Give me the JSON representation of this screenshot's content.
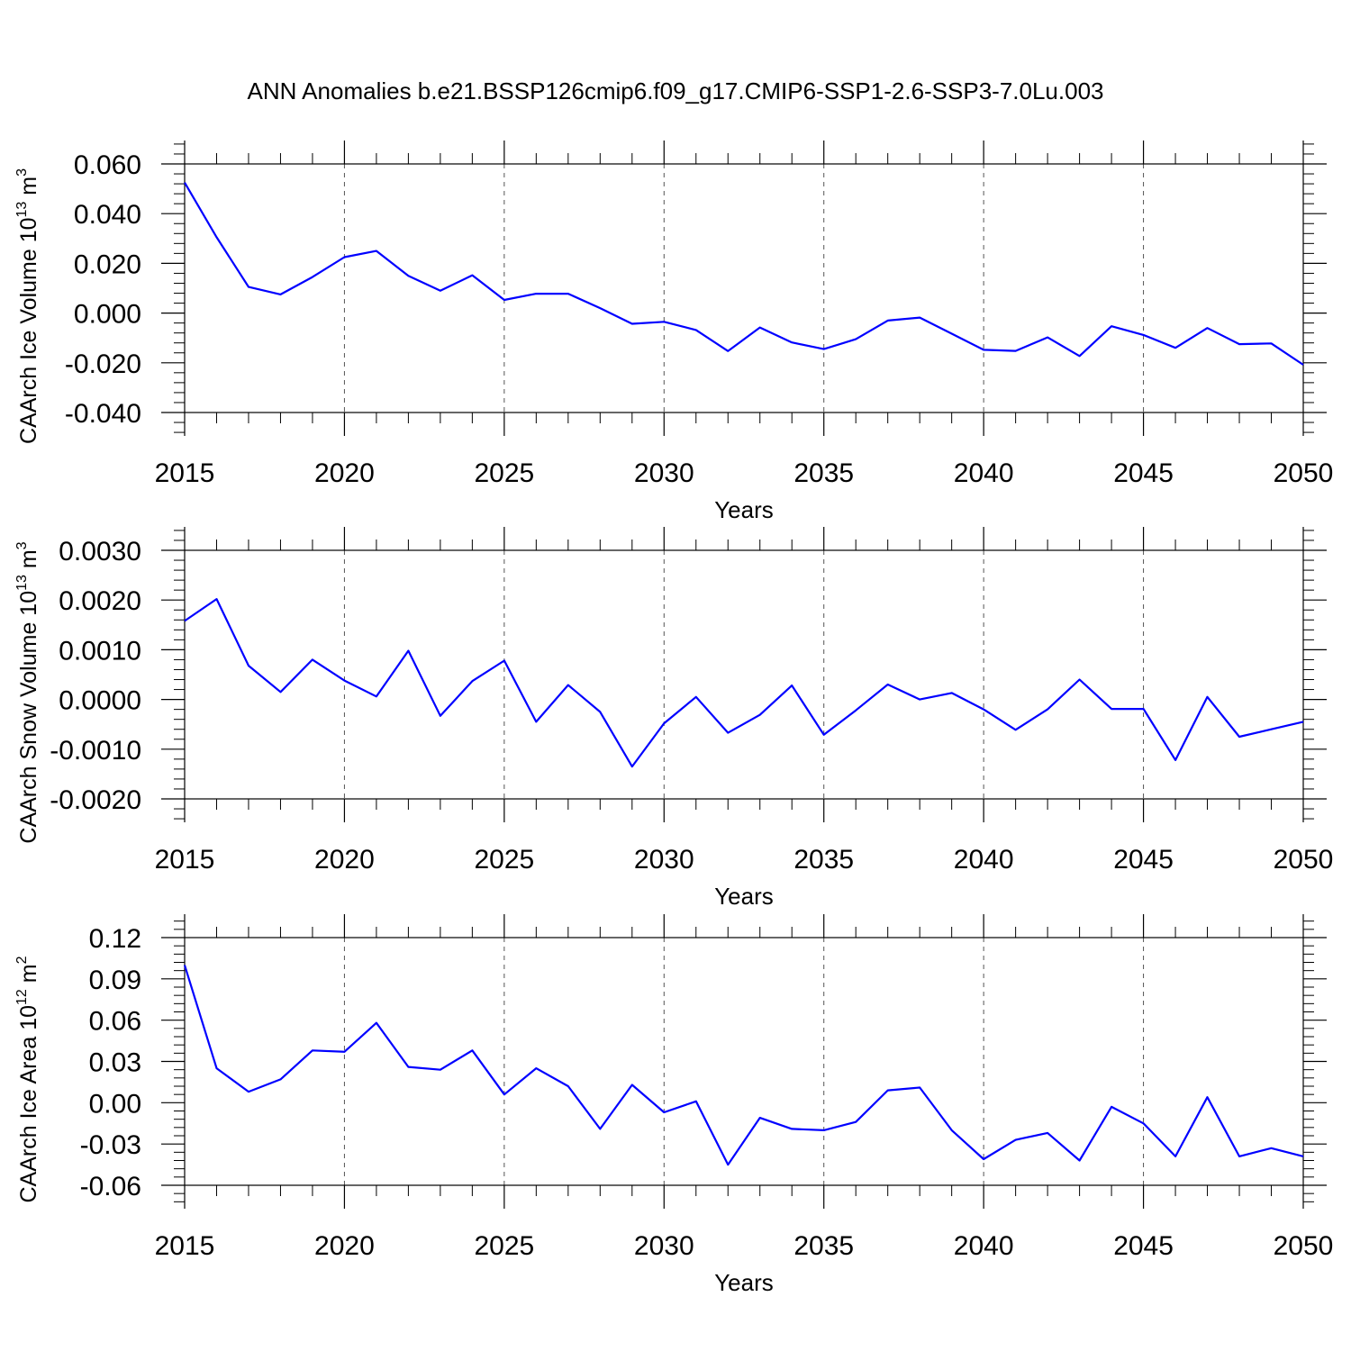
{
  "title": "ANN Anomalies b.e21.BSSP126cmip6.f09_g17.CMIP6-SSP1-2.6-SSP3-7.0Lu.003",
  "colors": {
    "line": "#0000ff",
    "axis": "#000000",
    "grid": "#555555"
  },
  "chart_data": [
    {
      "type": "line",
      "title": "ANN Anomalies b.e21.BSSP126cmip6.f09_g17.CMIP6-SSP1-2.6-SSP3-7.0Lu.003",
      "xlabel": "Years",
      "ylabel": "CAArch Ice Volume 10",
      "ylabel_exp": "13",
      "ylabel_unit": " m",
      "ylabel_unit_exp": "3",
      "xlim": [
        2015,
        2050
      ],
      "ylim": [
        -0.04,
        0.06
      ],
      "xticks": [
        "2015",
        "2020",
        "2025",
        "2030",
        "2035",
        "2040",
        "2045",
        "2050"
      ],
      "yticks": [
        "-0.040",
        "-0.020",
        "0.000",
        "0.020",
        "0.040",
        "0.060"
      ],
      "grid": "dashed vertical at major x ticks",
      "x": [
        2015,
        2016,
        2017,
        2018,
        2019,
        2020,
        2021,
        2022,
        2023,
        2024,
        2025,
        2026,
        2027,
        2028,
        2029,
        2030,
        2031,
        2032,
        2033,
        2034,
        2035,
        2036,
        2037,
        2038,
        2039,
        2040,
        2041,
        2042,
        2043,
        2044,
        2045,
        2046,
        2047,
        2048,
        2049,
        2050
      ],
      "series": [
        {
          "values": [
            0.0525,
            0.0305,
            0.0105,
            0.0075,
            0.0145,
            0.0225,
            0.025,
            0.015,
            0.009,
            0.0152,
            0.0053,
            0.0078,
            0.0078,
            0.002,
            -0.0043,
            -0.0035,
            -0.0068,
            -0.0153,
            -0.0058,
            -0.0118,
            -0.0145,
            -0.0105,
            -0.003,
            -0.0018,
            -0.0083,
            -0.0148,
            -0.0152,
            -0.0098,
            -0.0173,
            -0.0053,
            -0.0088,
            -0.014,
            -0.006,
            -0.0125,
            -0.0122,
            -0.0208
          ]
        }
      ]
    },
    {
      "type": "line",
      "xlabel": "Years",
      "ylabel": "CAArch Snow Volume 10",
      "ylabel_exp": "13",
      "ylabel_unit": " m",
      "ylabel_unit_exp": "3",
      "xlim": [
        2015,
        2050
      ],
      "ylim": [
        -0.002,
        0.003
      ],
      "xticks": [
        "2015",
        "2020",
        "2025",
        "2030",
        "2035",
        "2040",
        "2045",
        "2050"
      ],
      "yticks": [
        "-0.0020",
        "-0.0010",
        "0.0000",
        "0.0010",
        "0.0020",
        "0.0030"
      ],
      "grid": "dashed vertical at major x ticks",
      "x": [
        2015,
        2016,
        2017,
        2018,
        2019,
        2020,
        2021,
        2022,
        2023,
        2024,
        2025,
        2026,
        2027,
        2028,
        2029,
        2030,
        2031,
        2032,
        2033,
        2034,
        2035,
        2036,
        2037,
        2038,
        2039,
        2040,
        2041,
        2042,
        2043,
        2044,
        2045,
        2046,
        2047,
        2048,
        2049,
        2050
      ],
      "series": [
        {
          "values": [
            0.00158,
            0.00202,
            0.00068,
            0.00015,
            0.0008,
            0.00038,
            6e-05,
            0.00098,
            -0.00033,
            0.00037,
            0.00078,
            -0.00045,
            0.00029,
            -0.00025,
            -0.00135,
            -0.00048,
            5e-05,
            -0.00067,
            -0.00031,
            0.00028,
            -0.00071,
            -0.00022,
            0.0003,
            0.0,
            0.00013,
            -0.0002,
            -0.00061,
            -0.0002,
            0.0004,
            -0.00019,
            -0.00019,
            -0.00122,
            5e-05,
            -0.00075,
            -0.0006,
            -0.00045
          ]
        }
      ]
    },
    {
      "type": "line",
      "xlabel": "Years",
      "ylabel": "CAArch Ice Area 10",
      "ylabel_exp": "12",
      "ylabel_unit": " m",
      "ylabel_unit_exp": "2",
      "xlim": [
        2015,
        2050
      ],
      "ylim": [
        -0.06,
        0.12
      ],
      "xticks": [
        "2015",
        "2020",
        "2025",
        "2030",
        "2035",
        "2040",
        "2045",
        "2050"
      ],
      "yticks": [
        "-0.06",
        "-0.03",
        "0.00",
        "0.03",
        "0.06",
        "0.09",
        "0.12"
      ],
      "grid": "dashed vertical at major x ticks",
      "x": [
        2015,
        2016,
        2017,
        2018,
        2019,
        2020,
        2021,
        2022,
        2023,
        2024,
        2025,
        2026,
        2027,
        2028,
        2029,
        2030,
        2031,
        2032,
        2033,
        2034,
        2035,
        2036,
        2037,
        2038,
        2039,
        2040,
        2041,
        2042,
        2043,
        2044,
        2045,
        2046,
        2047,
        2048,
        2049,
        2050
      ],
      "series": [
        {
          "values": [
            0.1,
            0.025,
            0.008,
            0.017,
            0.038,
            0.037,
            0.058,
            0.026,
            0.024,
            0.038,
            0.006,
            0.025,
            0.012,
            -0.019,
            0.013,
            -0.007,
            0.001,
            -0.045,
            -0.011,
            -0.019,
            -0.02,
            -0.014,
            0.009,
            0.011,
            -0.02,
            -0.041,
            -0.027,
            -0.022,
            -0.042,
            -0.003,
            -0.015,
            -0.039,
            0.004,
            -0.039,
            -0.033,
            -0.039
          ]
        }
      ]
    }
  ]
}
